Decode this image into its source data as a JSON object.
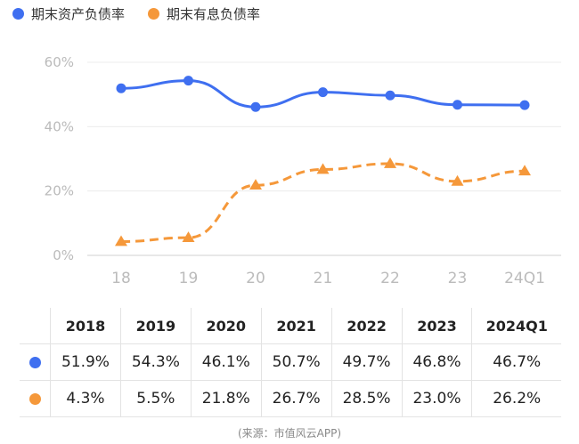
{
  "legend": {
    "series_a": "期末资产负债率",
    "series_b": "期末有息负债率"
  },
  "colors": {
    "series_a": "#3f6ff0",
    "series_b": "#f5983a"
  },
  "chart_data": {
    "type": "line",
    "categories": [
      "18",
      "19",
      "20",
      "21",
      "22",
      "23",
      "24Q1"
    ],
    "y_ticks": [
      "0%",
      "20%",
      "40%",
      "60%"
    ],
    "ylim": [
      0,
      60
    ],
    "series": [
      {
        "name": "期末资产负债率",
        "values": [
          51.9,
          54.3,
          46.1,
          50.7,
          49.7,
          46.8,
          46.7
        ],
        "style": "solid",
        "marker": "circle"
      },
      {
        "name": "期末有息负债率",
        "values": [
          4.3,
          5.5,
          21.8,
          26.7,
          28.5,
          23.0,
          26.2
        ],
        "style": "dashed",
        "marker": "triangle"
      }
    ],
    "grid": true
  },
  "table": {
    "headers": [
      "2018",
      "2019",
      "2020",
      "2021",
      "2022",
      "2023",
      "2024Q1"
    ],
    "rows": [
      [
        "51.9%",
        "54.3%",
        "46.1%",
        "50.7%",
        "49.7%",
        "46.8%",
        "46.7%"
      ],
      [
        "4.3%",
        "5.5%",
        "21.8%",
        "26.7%",
        "28.5%",
        "23.0%",
        "26.2%"
      ]
    ]
  },
  "source": "(来源：市值风云APP)"
}
